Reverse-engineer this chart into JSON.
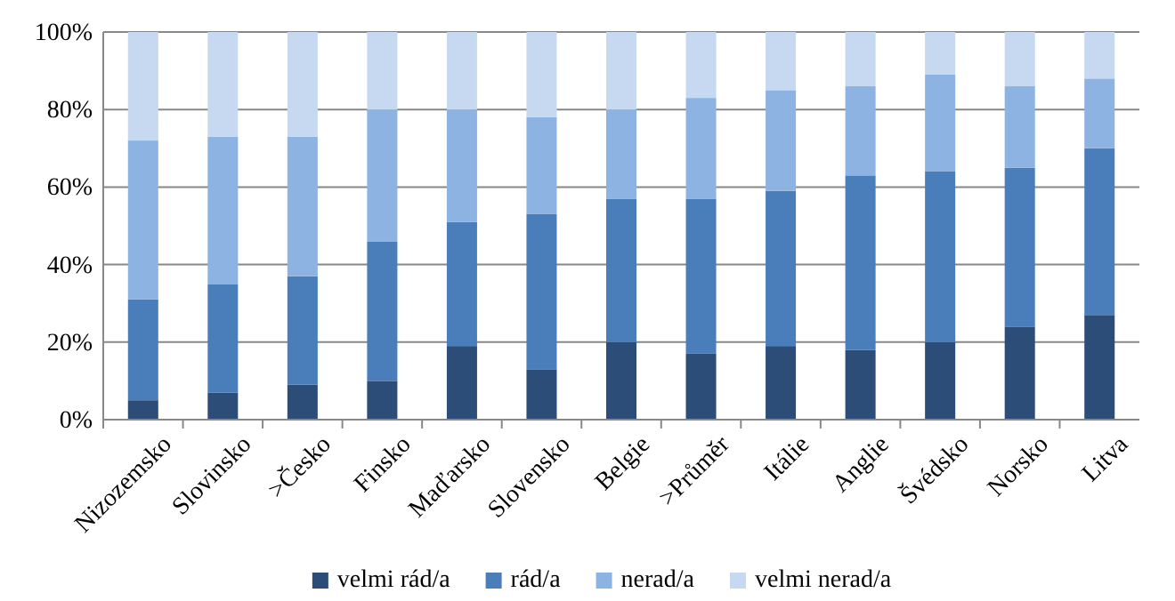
{
  "chart_data": {
    "type": "bar",
    "stacked": true,
    "categories": [
      "Nizozemsko",
      "Slovinsko",
      ">Česko",
      "Finsko",
      "Maďarsko",
      "Slovensko",
      "Belgie",
      ">Průměr",
      "Itálie",
      "Anglie",
      "Švédsko",
      "Norsko",
      "Litva"
    ],
    "series": [
      {
        "name": "velmi rád/a",
        "color": "#2c4d78",
        "values": [
          5,
          7,
          9,
          10,
          19,
          13,
          20,
          17,
          19,
          18,
          20,
          24,
          27
        ]
      },
      {
        "name": "rád/a",
        "color": "#4a7ebb",
        "values": [
          26,
          28,
          28,
          36,
          32,
          40,
          37,
          40,
          40,
          45,
          44,
          41,
          43
        ]
      },
      {
        "name": "nerad/a",
        "color": "#8db3e2",
        "values": [
          41,
          38,
          36,
          34,
          29,
          25,
          23,
          26,
          26,
          23,
          25,
          21,
          18
        ]
      },
      {
        "name": "velmi nerad/a",
        "color": "#c6d9f1",
        "values": [
          28,
          27,
          27,
          20,
          20,
          22,
          20,
          17,
          15,
          14,
          11,
          14,
          12
        ]
      }
    ],
    "ylim": [
      0,
      100
    ],
    "yticks": [
      {
        "value": 0,
        "label": "0%"
      },
      {
        "value": 20,
        "label": "20%"
      },
      {
        "value": 40,
        "label": "40%"
      },
      {
        "value": 60,
        "label": "60%"
      },
      {
        "value": 80,
        "label": "80%"
      },
      {
        "value": 100,
        "label": "100%"
      }
    ],
    "grid": "y",
    "legend": "bottom"
  }
}
